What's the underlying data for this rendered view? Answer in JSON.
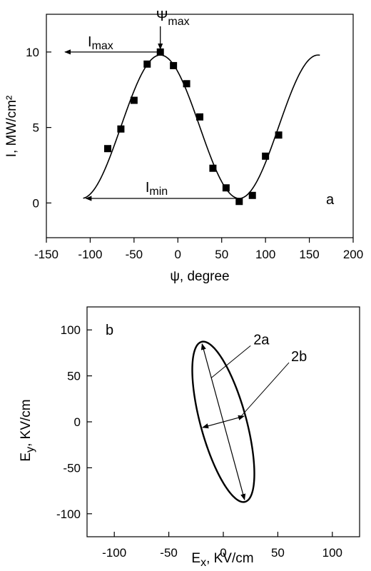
{
  "chart_data": [
    {
      "panel": "a",
      "type": "scatter",
      "panel_label": "a",
      "xlabel": "ψ, degree",
      "ylabel": "I, MW/cm²",
      "xlim": [
        -150,
        200
      ],
      "ylim": [
        -2.3,
        12.5
      ],
      "xticks": [
        -150,
        -100,
        -50,
        0,
        50,
        100,
        150,
        200
      ],
      "yticks": [
        0,
        5,
        10
      ],
      "series": [
        {
          "kind": "markers",
          "marker": "square",
          "points": [
            {
              "x": -80,
              "y": 3.6
            },
            {
              "x": -65,
              "y": 4.9
            },
            {
              "x": -50,
              "y": 6.8
            },
            {
              "x": -35,
              "y": 9.2
            },
            {
              "x": -20,
              "y": 10.0
            },
            {
              "x": -5,
              "y": 9.1
            },
            {
              "x": 10,
              "y": 7.9
            },
            {
              "x": 25,
              "y": 5.7
            },
            {
              "x": 40,
              "y": 2.3
            },
            {
              "x": 55,
              "y": 1.0
            },
            {
              "x": 70,
              "y": 0.1
            },
            {
              "x": 85,
              "y": 0.5
            },
            {
              "x": 100,
              "y": 3.1
            },
            {
              "x": 115,
              "y": 4.5
            }
          ]
        },
        {
          "kind": "fit-curve",
          "model": "sinusoid",
          "x_range": [
            -108,
            162
          ],
          "mean": 5.05,
          "amplitude": 4.75,
          "x_at_max": -20,
          "period": 180
        }
      ],
      "annotations": [
        {
          "id": "psi-max",
          "main": "Ψ",
          "sub": "max",
          "x": -20,
          "y": 10
        },
        {
          "id": "i-max",
          "main": "I",
          "sub": "max",
          "y": 10,
          "arrow_to_x": -150
        },
        {
          "id": "i-min",
          "main": "I",
          "sub": "min",
          "y": 0.3,
          "arrow_to_x": -105
        }
      ]
    },
    {
      "panel": "b",
      "type": "line",
      "panel_label": "b",
      "xlabel_main": "E",
      "xlabel_sub": "x",
      "xlabel_rest": ", KV/cm",
      "ylabel_main": "E",
      "ylabel_sub": "y",
      "ylabel_rest": ", KV/cm",
      "xlim": [
        -125,
        125
      ],
      "ylim": [
        -125,
        125
      ],
      "xticks": [
        -100,
        -50,
        0,
        50,
        100
      ],
      "yticks": [
        -100,
        -50,
        0,
        50,
        100
      ],
      "ellipse": {
        "major_end_1": {
          "x": -20,
          "y": 87
        },
        "major_end_2": {
          "x": 20,
          "y": -87
        },
        "semi_minor": 21
      },
      "annotations": [
        {
          "id": "label-2a",
          "text": "2a"
        },
        {
          "id": "label-2b",
          "text": "2b"
        }
      ]
    }
  ]
}
